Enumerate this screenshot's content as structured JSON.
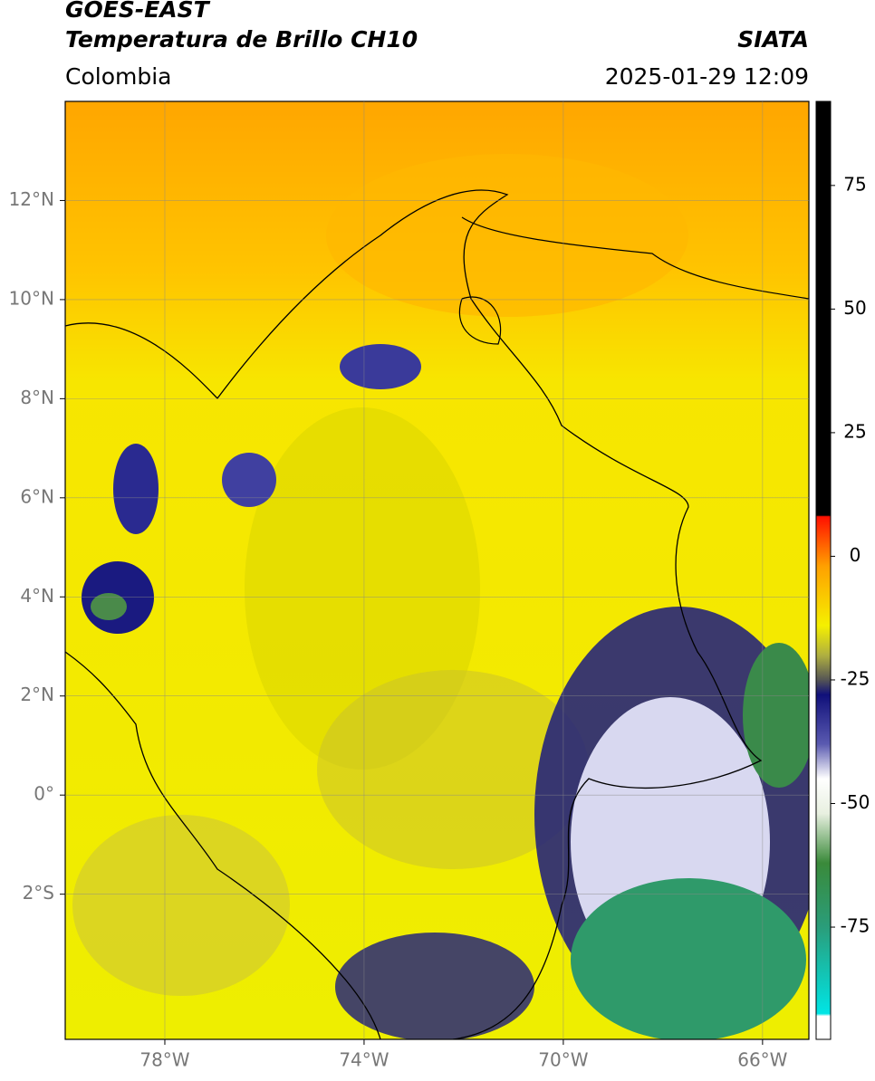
{
  "header": {
    "title": "GOES-EAST",
    "subtitle": "Temperatura de Brillo CH10",
    "source": "SIATA",
    "region": "Colombia",
    "timestamp": "2025-01-29 12:09"
  },
  "map": {
    "lonlim": [
      -80,
      -65.07
    ],
    "latlim": [
      -4.93,
      14
    ],
    "lon_ticks": [
      {
        "value": -78,
        "label": "78°W"
      },
      {
        "value": -74,
        "label": "74°W"
      },
      {
        "value": -70,
        "label": "70°W"
      },
      {
        "value": -66,
        "label": "66°W"
      }
    ],
    "lat_ticks": [
      {
        "value": -2,
        "label": "2°S"
      },
      {
        "value": 0,
        "label": "0°"
      },
      {
        "value": 2,
        "label": "2°N"
      },
      {
        "value": 4,
        "label": "4°N"
      },
      {
        "value": 6,
        "label": "6°N"
      },
      {
        "value": 8,
        "label": "8°N"
      },
      {
        "value": 10,
        "label": "10°N"
      },
      {
        "value": 12,
        "label": "12°N"
      }
    ],
    "grid": true
  },
  "colorbar": {
    "lim": [
      -97.7,
      92
    ],
    "ticks": [
      75,
      50,
      25,
      0,
      -25,
      -50,
      -75
    ],
    "stops": [
      {
        "value": -97.7,
        "color": "#ffffff"
      },
      {
        "value": -93,
        "color": "#ffffff"
      },
      {
        "value": -92.5,
        "color": "#00e5e5"
      },
      {
        "value": -75,
        "color": "#2a9d7a"
      },
      {
        "value": -62,
        "color": "#3a8a3a"
      },
      {
        "value": -52,
        "color": "#e8f0e0"
      },
      {
        "value": -45,
        "color": "#ffffff"
      },
      {
        "value": -38,
        "color": "#5a5ab0"
      },
      {
        "value": -28,
        "color": "#10107a"
      },
      {
        "value": -25,
        "color": "#555555"
      },
      {
        "value": -20,
        "color": "#b0b040"
      },
      {
        "value": -14,
        "color": "#f5f000"
      },
      {
        "value": -2,
        "color": "#ffa000"
      },
      {
        "value": 8,
        "color": "#ff1000"
      },
      {
        "value": 8.3,
        "color": "#000000"
      },
      {
        "value": 92,
        "color": "#000000"
      }
    ]
  }
}
